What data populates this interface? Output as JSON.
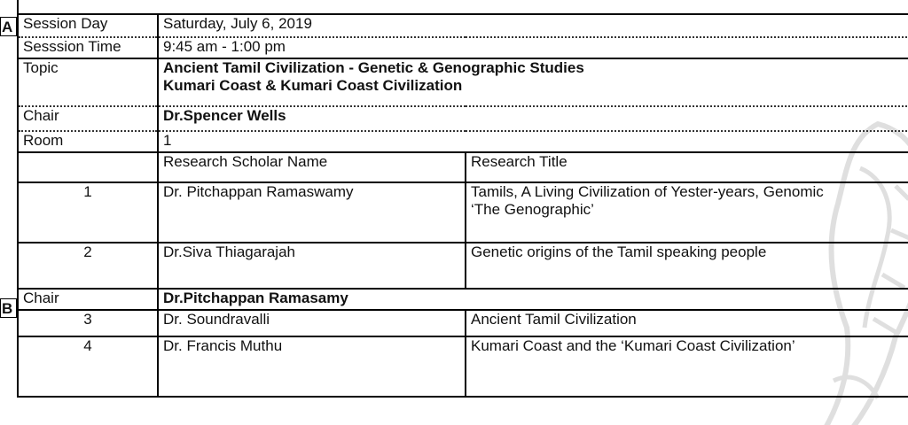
{
  "session_a": {
    "marker": "A",
    "session_day_label": "Session Day",
    "session_day_value": "Saturday, July 6, 2019",
    "session_time_label": "Sesssion Time",
    "session_time_value": "9:45 am  - 1:00 pm",
    "topic_label": "Topic",
    "topic_line1": "Ancient Tamil Civilization - Genetic & Genographic Studies",
    "topic_line2": "Kumari Coast & Kumari Coast Civilization",
    "chair_label": "Chair",
    "chair_value": "Dr.Spencer Wells",
    "room_label": "Room",
    "room_value": "1",
    "header_scholar": "Research Scholar Name",
    "header_title": "Research Title",
    "presentations": [
      {
        "number": "1",
        "scholar": "Dr. Pitchappan Ramaswamy",
        "title_line1": "Tamils, A Living Civilization of Yester-years, Genomic",
        "title_line2": "‘The Genographic’"
      },
      {
        "number": "2",
        "scholar": "Dr.Siva Thiagarajah",
        "title_line1": "Genetic origins of the Tamil speaking people"
      }
    ]
  },
  "session_b": {
    "marker": "B",
    "chair_label": "Chair",
    "chair_value": "Dr.Pitchappan Ramasamy",
    "presentations": [
      {
        "number": "3",
        "scholar": "Dr. Soundravalli",
        "title_line1": "Ancient Tamil Civilization"
      },
      {
        "number": "4",
        "scholar": "Dr. Francis Muthu",
        "title_line1": "Kumari Coast and the ‘Kumari Coast Civilization’"
      }
    ]
  },
  "watermark_icon": "stylized-figure-watermark"
}
